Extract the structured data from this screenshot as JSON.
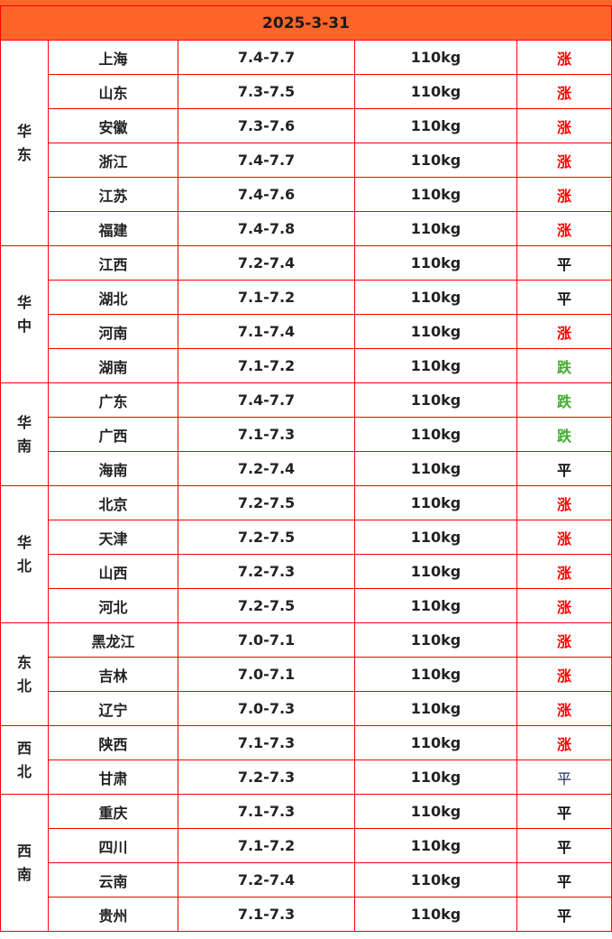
{
  "date": "2025-3-31",
  "colors": {
    "header_bg": "#FF6428",
    "border": "#FF0000",
    "up": "#FF0000",
    "down": "#3DAE2B",
    "flat": "#111111"
  },
  "regions": [
    {
      "name": "华东",
      "rows": [
        {
          "province": "上海",
          "price": "7.4-7.7",
          "weight": "110kg",
          "trend": "涨"
        },
        {
          "province": "山东",
          "price": "7.3-7.5",
          "weight": "110kg",
          "trend": "涨"
        },
        {
          "province": "安徽",
          "price": "7.3-7.6",
          "weight": "110kg",
          "trend": "涨"
        },
        {
          "province": "浙江",
          "price": "7.4-7.7",
          "weight": "110kg",
          "trend": "涨"
        },
        {
          "province": "江苏",
          "price": "7.4-7.6",
          "weight": "110kg",
          "trend": "涨"
        },
        {
          "province": "福建",
          "price": "7.4-7.8",
          "weight": "110kg",
          "trend": "涨"
        }
      ]
    },
    {
      "name": "华中",
      "rows": [
        {
          "province": "江西",
          "price": "7.2-7.4",
          "weight": "110kg",
          "trend": "平"
        },
        {
          "province": "湖北",
          "price": "7.1-7.2",
          "weight": "110kg",
          "trend": "平"
        },
        {
          "province": "河南",
          "price": "7.1-7.4",
          "weight": "110kg",
          "trend": "涨"
        },
        {
          "province": "湖南",
          "price": "7.1-7.2",
          "weight": "110kg",
          "trend": "跌"
        }
      ]
    },
    {
      "name": "华南",
      "rows": [
        {
          "province": "广东",
          "price": "7.4-7.7",
          "weight": "110kg",
          "trend": "跌"
        },
        {
          "province": "广西",
          "price": "7.1-7.3",
          "weight": "110kg",
          "trend": "跌"
        },
        {
          "province": "海南",
          "price": "7.2-7.4",
          "weight": "110kg",
          "trend": "平"
        }
      ]
    },
    {
      "name": "华北",
      "rows": [
        {
          "province": "北京",
          "price": "7.2-7.5",
          "weight": "110kg",
          "trend": "涨"
        },
        {
          "province": "天津",
          "price": "7.2-7.5",
          "weight": "110kg",
          "trend": "涨"
        },
        {
          "province": "山西",
          "price": "7.2-7.3",
          "weight": "110kg",
          "trend": "涨"
        },
        {
          "province": "河北",
          "price": "7.2-7.5",
          "weight": "110kg",
          "trend": "涨"
        }
      ]
    },
    {
      "name": "东北",
      "rows": [
        {
          "province": "黑龙江",
          "price": "7.0-7.1",
          "weight": "110kg",
          "trend": "涨"
        },
        {
          "province": "吉林",
          "price": "7.0-7.1",
          "weight": "110kg",
          "trend": "涨"
        },
        {
          "province": "辽宁",
          "price": "7.0-7.3",
          "weight": "110kg",
          "trend": "涨"
        }
      ]
    },
    {
      "name": "西北",
      "rows": [
        {
          "province": "陕西",
          "price": "7.1-7.3",
          "weight": "110kg",
          "trend": "涨"
        },
        {
          "province": "甘肃",
          "price": "7.2-7.3",
          "weight": "110kg",
          "trend": "平",
          "plain": true
        }
      ]
    },
    {
      "name": "西南",
      "rows": [
        {
          "province": "重庆",
          "price": "7.1-7.3",
          "weight": "110kg",
          "trend": "平"
        },
        {
          "province": "四川",
          "price": "7.1-7.2",
          "weight": "110kg",
          "trend": "平"
        },
        {
          "province": "云南",
          "price": "7.2-7.4",
          "weight": "110kg",
          "trend": "平"
        },
        {
          "province": "贵州",
          "price": "7.1-7.3",
          "weight": "110kg",
          "trend": "平"
        }
      ]
    }
  ]
}
